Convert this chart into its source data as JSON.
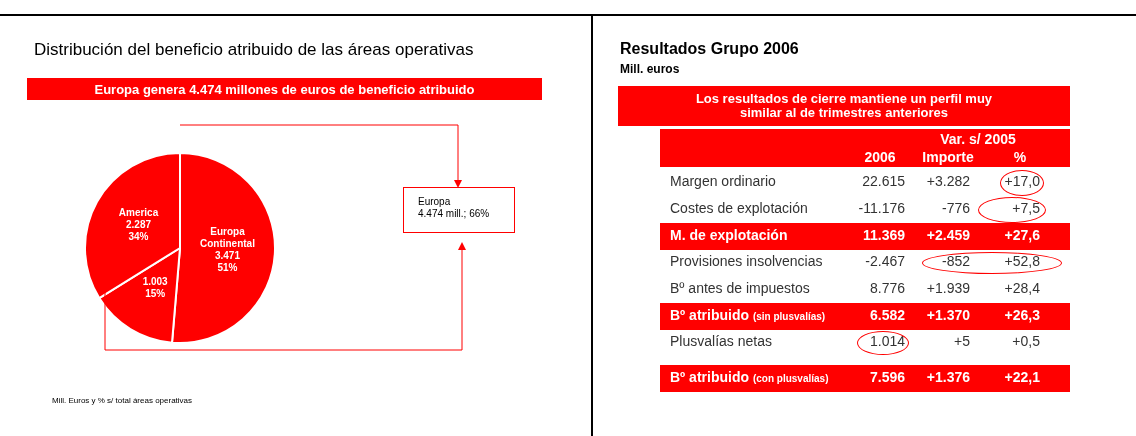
{
  "chart_data": [
    {
      "type": "pie",
      "title": "Distribución del beneficio atribuido de las áreas operativas",
      "subtitle": "Europa genera 4.474 millones de euros de beneficio atribuido",
      "categories": [
        "Europa Continental",
        null,
        "America"
      ],
      "values": [
        3471,
        1003,
        2287
      ],
      "value_labels": [
        "3.471\n51%",
        "1.003\n15%",
        "2.287\n34%"
      ],
      "colors": [
        "#ff0000",
        "#ff0000",
        "#ff0000"
      ],
      "annotations": [
        "Europa\n4.474 mill.; 66%",
        "Mill. Euros y % s/ total áreas operativas"
      ]
    },
    {
      "type": "other",
      "title": "Resultados Grupo 2006",
      "subtitle": "Mill. euros",
      "legend_title": "Var. s/ 2005",
      "annotations": [
        "Los resultados de cierre mantiene un perfil muy similar al de trimestres anteriores"
      ],
      "categories": [
        "Margen ordinario",
        "Costes de explotación",
        "M. de explotación",
        "Provisiones insolvencias",
        "Bº antes de impuestos",
        "Bº atribuido (sin plusvalías)",
        "Plusvalías netas",
        "Bº atribuido (con plusvalías)"
      ],
      "colors": [
        null,
        null,
        "#ff0000",
        null,
        null,
        "#ff0000",
        null,
        "#ff0000"
      ],
      "series": [
        {
          "name": "2006",
          "values": [
            22615,
            -11176,
            11369,
            -2467,
            8776,
            6582,
            1014,
            7596
          ],
          "value_labels": [
            "22.615",
            "-11.176",
            "11.369",
            "-2.467",
            "8.776",
            "6.582",
            "1.014",
            "7.596"
          ]
        },
        {
          "name": "Importe",
          "values": [
            3282,
            -776,
            2459,
            -852,
            1939,
            1370,
            5,
            1376
          ],
          "value_labels": [
            "+3.282",
            "-776",
            "+2.459",
            "-852",
            "+1.939",
            "+1.370",
            "+5",
            "+1.376"
          ]
        },
        {
          "name": "%",
          "values": [
            17.0,
            7.5,
            27.6,
            52.8,
            28.4,
            26.3,
            0.5,
            22.1
          ],
          "value_labels": [
            "+17,0",
            "+7,5",
            "+27,6",
            "+52,8",
            "+28,4",
            "+26,3",
            "+0,5",
            "+22,1"
          ]
        }
      ]
    }
  ]
}
